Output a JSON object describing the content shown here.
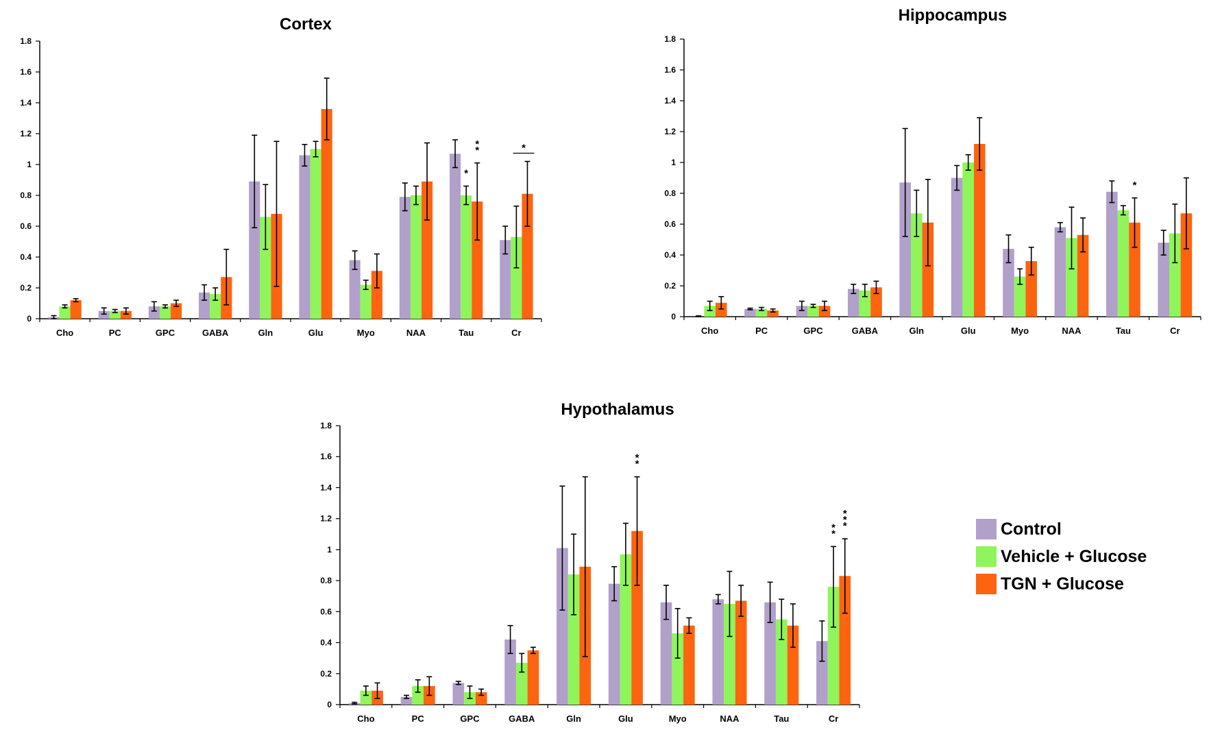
{
  "colors": {
    "control": "#b1a0c9",
    "vehicle": "#8ff55a",
    "tgn": "#fc6410",
    "axis": "#000000"
  },
  "legend": [
    {
      "name": "Control",
      "color_key": "control"
    },
    {
      "name": "Vehicle + Glucose",
      "color_key": "vehicle"
    },
    {
      "name": "TGN + Glucose",
      "color_key": "tgn"
    }
  ],
  "chart_data": [
    {
      "type": "bar",
      "title": "Cortex",
      "categories": [
        "Cho",
        "PC",
        "GPC",
        "GABA",
        "Gln",
        "Glu",
        "Myo",
        "NAA",
        "Tau",
        "Cr"
      ],
      "ylim": [
        0,
        1.8
      ],
      "yticks": [
        "0",
        "0.2",
        "0.4",
        "0.6",
        "0.8",
        "1",
        "1.2",
        "1.4",
        "1.6",
        "1.8"
      ],
      "series": [
        {
          "name": "Control",
          "values": [
            0.01,
            0.05,
            0.08,
            0.17,
            0.89,
            1.06,
            0.38,
            0.79,
            1.07,
            0.51
          ],
          "errors": [
            0.01,
            0.02,
            0.03,
            0.05,
            0.3,
            0.07,
            0.06,
            0.09,
            0.09,
            0.09
          ]
        },
        {
          "name": "Vehicle + Glucose",
          "values": [
            0.08,
            0.05,
            0.08,
            0.16,
            0.66,
            1.1,
            0.22,
            0.8,
            0.8,
            0.53
          ],
          "errors": [
            0.01,
            0.01,
            0.01,
            0.04,
            0.21,
            0.05,
            0.03,
            0.06,
            0.06,
            0.2
          ]
        },
        {
          "name": "TGN + Glucose",
          "values": [
            0.12,
            0.05,
            0.1,
            0.27,
            0.68,
            1.36,
            0.31,
            0.89,
            0.76,
            0.81
          ],
          "errors": [
            0.01,
            0.02,
            0.02,
            0.18,
            0.47,
            0.2,
            0.11,
            0.25,
            0.25,
            0.21
          ]
        }
      ],
      "annotations": [
        {
          "category": "Tau",
          "series": 1,
          "text": "*"
        },
        {
          "category": "Tau",
          "series": 2,
          "text": "*"
        },
        {
          "category": "Tau",
          "series": 2,
          "text": "*"
        },
        {
          "category": "Cr",
          "series": 2,
          "text": "*",
          "bracket": true
        }
      ]
    },
    {
      "type": "bar",
      "title": "Hippocampus",
      "categories": [
        "Cho",
        "PC",
        "GPC",
        "GABA",
        "Gln",
        "Glu",
        "Myo",
        "NAA",
        "Tau",
        "Cr"
      ],
      "ylim": [
        0,
        1.8
      ],
      "yticks": [
        "0",
        "0.2",
        "0.4",
        "0.6",
        "0.8",
        "1",
        "1.2",
        "1.4",
        "1.6",
        "1.8"
      ],
      "series": [
        {
          "name": "Control",
          "values": [
            0.0,
            0.05,
            0.07,
            0.18,
            0.87,
            0.9,
            0.44,
            0.58,
            0.81,
            0.48
          ],
          "errors": [
            0.005,
            0.005,
            0.03,
            0.03,
            0.35,
            0.08,
            0.09,
            0.03,
            0.07,
            0.08
          ]
        },
        {
          "name": "Vehicle + Glucose",
          "values": [
            0.07,
            0.05,
            0.07,
            0.17,
            0.67,
            1.0,
            0.26,
            0.51,
            0.69,
            0.54
          ],
          "errors": [
            0.03,
            0.01,
            0.01,
            0.04,
            0.15,
            0.05,
            0.05,
            0.2,
            0.03,
            0.19
          ]
        },
        {
          "name": "TGN + Glucose",
          "values": [
            0.09,
            0.04,
            0.07,
            0.19,
            0.61,
            1.12,
            0.36,
            0.53,
            0.61,
            0.67
          ],
          "errors": [
            0.04,
            0.01,
            0.03,
            0.04,
            0.28,
            0.17,
            0.09,
            0.11,
            0.16,
            0.23
          ]
        }
      ],
      "annotations": [
        {
          "category": "Tau",
          "series": 2,
          "text": "*"
        }
      ]
    },
    {
      "type": "bar",
      "title": "Hypothalamus",
      "categories": [
        "Cho",
        "PC",
        "GPC",
        "GABA",
        "Gln",
        "Glu",
        "Myo",
        "NAA",
        "Tau",
        "Cr"
      ],
      "ylim": [
        0,
        1.8
      ],
      "yticks": [
        "0",
        "0.2",
        "0.4",
        "0.6",
        "0.8",
        "1",
        "1.2",
        "1.4",
        "1.6",
        "1.8"
      ],
      "series": [
        {
          "name": "Control",
          "values": [
            0.01,
            0.05,
            0.14,
            0.42,
            1.01,
            0.78,
            0.66,
            0.68,
            0.66,
            0.41
          ],
          "errors": [
            0.005,
            0.01,
            0.01,
            0.09,
            0.4,
            0.11,
            0.11,
            0.03,
            0.13,
            0.13
          ]
        },
        {
          "name": "Vehicle + Glucose",
          "values": [
            0.09,
            0.12,
            0.08,
            0.27,
            0.84,
            0.97,
            0.46,
            0.65,
            0.55,
            0.76
          ],
          "errors": [
            0.03,
            0.04,
            0.04,
            0.06,
            0.26,
            0.2,
            0.16,
            0.21,
            0.13,
            0.26
          ]
        },
        {
          "name": "TGN + Glucose",
          "values": [
            0.09,
            0.12,
            0.08,
            0.35,
            0.89,
            1.12,
            0.51,
            0.67,
            0.51,
            0.83
          ],
          "errors": [
            0.05,
            0.06,
            0.02,
            0.02,
            0.58,
            0.35,
            0.05,
            0.1,
            0.14,
            0.24
          ]
        }
      ],
      "annotations": [
        {
          "category": "Glu",
          "series": 2,
          "text": "*"
        },
        {
          "category": "Glu",
          "series": 2,
          "text": "*"
        },
        {
          "category": "Cr",
          "series": 1,
          "text": "*"
        },
        {
          "category": "Cr",
          "series": 1,
          "text": "*"
        },
        {
          "category": "Cr",
          "series": 2,
          "text": "*"
        },
        {
          "category": "Cr",
          "series": 2,
          "text": "*"
        },
        {
          "category": "Cr",
          "series": 2,
          "text": "*"
        }
      ]
    }
  ]
}
